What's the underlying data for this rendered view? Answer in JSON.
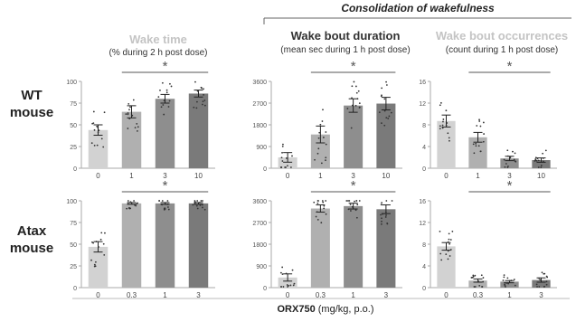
{
  "consolidation_label": "Consolidation of wakefulness",
  "column_headers": [
    {
      "title": "Wake time",
      "subtitle": "(% during 2 h post dose)",
      "color": "#c4c4c4"
    },
    {
      "title": "Wake bout duration",
      "subtitle": "(mean sec during 1 h post dose)",
      "color": "#333333"
    },
    {
      "title": "Wake bout occurrences",
      "subtitle": "(count during 1 h post dose)",
      "color": "#c4c4c4"
    }
  ],
  "row_labels": [
    {
      "line1": "WT",
      "line2": "mouse"
    },
    {
      "line1": "Atax",
      "line2": "mouse"
    }
  ],
  "xaxis": {
    "bold": "ORX750",
    "rest": " (mg/kg, p.o.)"
  },
  "bar_colors": [
    "#d2d2d2",
    "#b0b0b0",
    "#8e8e8e",
    "#7a7a7a"
  ],
  "chart_data": [
    {
      "type": "bar",
      "id": "wt-wake-time",
      "categories": [
        "0",
        "1",
        "3",
        "10"
      ],
      "values": [
        44,
        65,
        80,
        86
      ],
      "errors": [
        6,
        7,
        5,
        4
      ],
      "ylim": [
        0,
        100
      ],
      "yticks": [
        0,
        25,
        50,
        75,
        100
      ],
      "significance": "*",
      "sig_span": [
        1,
        3
      ]
    },
    {
      "type": "bar",
      "id": "wt-bout-duration",
      "categories": [
        "0",
        "1",
        "3",
        "10"
      ],
      "values": [
        450,
        1400,
        2600,
        2680
      ],
      "errors": [
        200,
        350,
        280,
        260
      ],
      "ylim": [
        0,
        3600
      ],
      "yticks": [
        0,
        900,
        1800,
        2700,
        3600
      ],
      "significance": "*",
      "sig_span": [
        1,
        3
      ]
    },
    {
      "type": "bar",
      "id": "wt-bout-occurrences",
      "categories": [
        "0",
        "1",
        "3",
        "10"
      ],
      "values": [
        8.7,
        5.7,
        1.8,
        1.5
      ],
      "errors": [
        1.1,
        0.9,
        0.4,
        0.4
      ],
      "ylim": [
        0,
        16
      ],
      "yticks": [
        0,
        4,
        8,
        12,
        16
      ],
      "significance": "*",
      "sig_span": [
        1,
        3
      ]
    },
    {
      "type": "bar",
      "id": "atax-wake-time",
      "categories": [
        "0",
        "0.3",
        "1",
        "3"
      ],
      "values": [
        47,
        97,
        97,
        97
      ],
      "errors": [
        6,
        1,
        1,
        1
      ],
      "ylim": [
        0,
        100
      ],
      "yticks": [
        0,
        25,
        50,
        75,
        100
      ],
      "significance": "*",
      "sig_span": [
        1,
        3
      ]
    },
    {
      "type": "bar",
      "id": "atax-bout-duration",
      "categories": [
        "0",
        "0.3",
        "1",
        "3"
      ],
      "values": [
        420,
        3280,
        3380,
        3250
      ],
      "errors": [
        150,
        150,
        120,
        180
      ],
      "ylim": [
        0,
        3600
      ],
      "yticks": [
        0,
        900,
        1800,
        2700,
        3600
      ],
      "significance": "*",
      "sig_span": [
        1,
        3
      ]
    },
    {
      "type": "bar",
      "id": "atax-bout-occurrences",
      "categories": [
        "0",
        "0.3",
        "1",
        "3"
      ],
      "values": [
        7.6,
        1.3,
        1.1,
        1.4
      ],
      "errors": [
        0.7,
        0.3,
        0.2,
        0.4
      ],
      "ylim": [
        0,
        16
      ],
      "yticks": [
        0,
        4,
        8,
        12,
        16
      ],
      "significance": "*",
      "sig_span": [
        1,
        3
      ]
    }
  ]
}
